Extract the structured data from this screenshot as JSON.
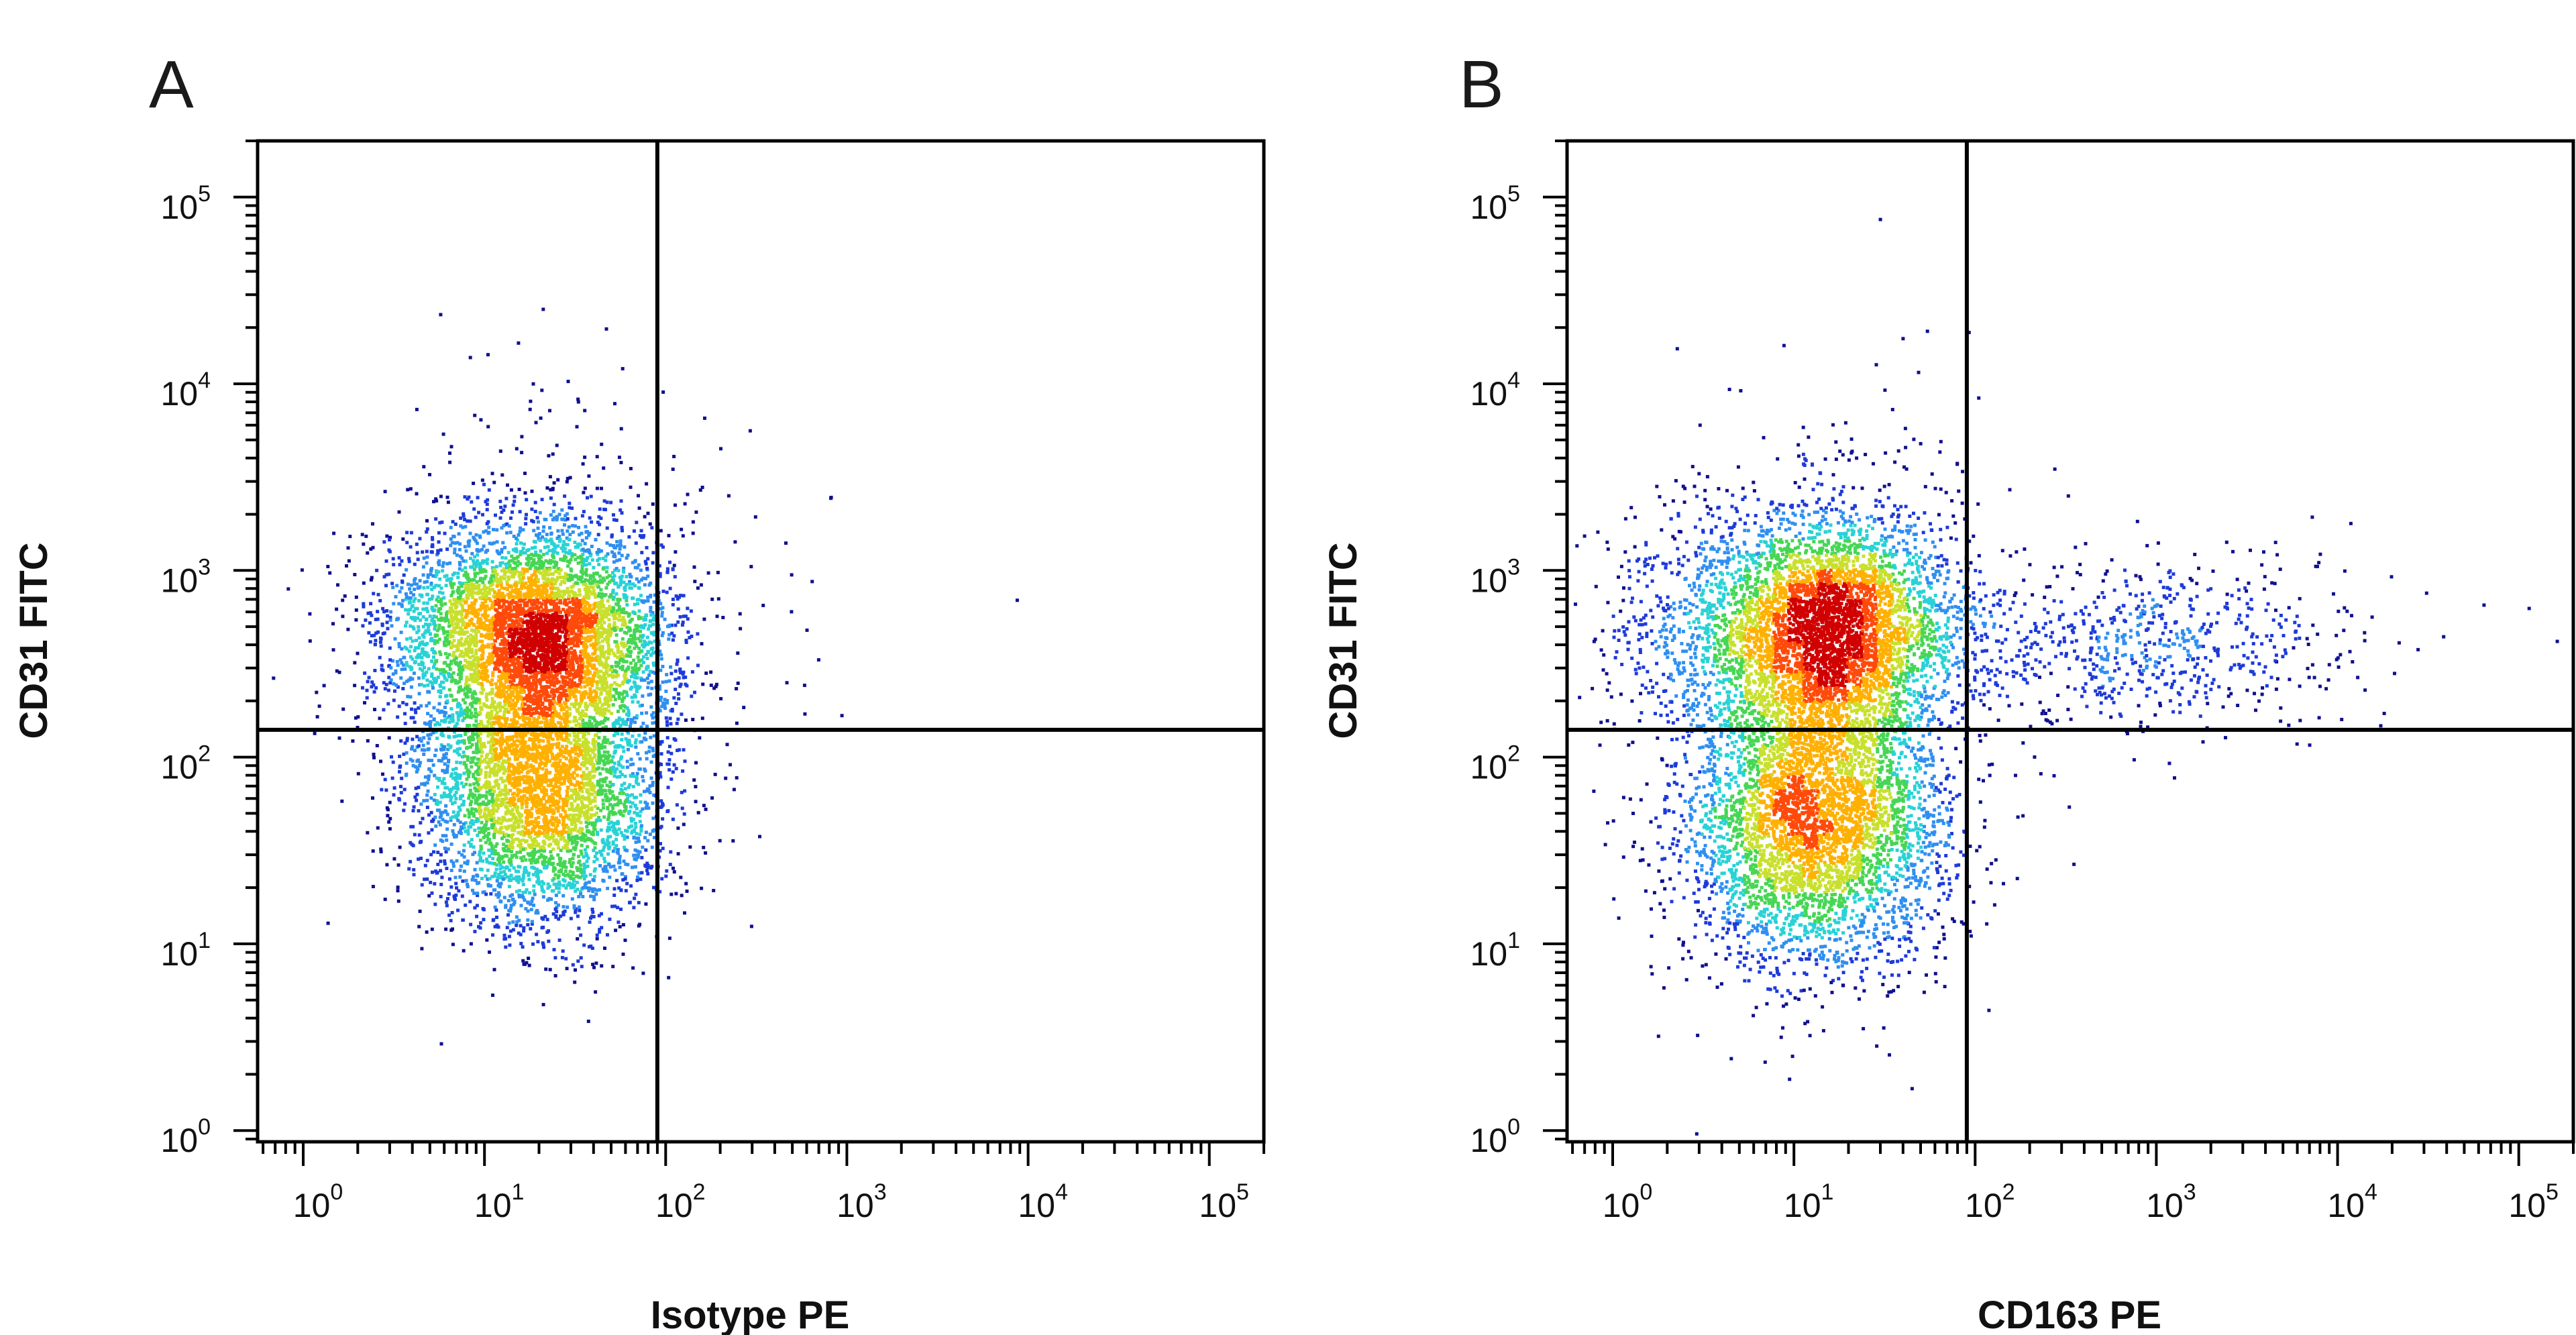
{
  "chart_data": [
    {
      "panel": "A",
      "type": "scatter",
      "style": "flow-cytometry pseudocolor density dot plot",
      "xlabel": "Isotype PE",
      "ylabel": "CD31 FITC",
      "xscale": "log",
      "yscale": "log",
      "xlim": [
        0.56,
        200000
      ],
      "ylim": [
        0.87,
        200000
      ],
      "x_ticks": [
        1,
        10,
        100,
        1000,
        10000,
        100000
      ],
      "x_tick_labels": [
        [
          "10",
          "0"
        ],
        [
          "10",
          "1"
        ],
        [
          "10",
          "2"
        ],
        [
          "10",
          "3"
        ],
        [
          "10",
          "4"
        ],
        [
          "10",
          "5"
        ]
      ],
      "y_ticks": [
        1,
        10,
        100,
        1000,
        10000,
        100000
      ],
      "y_tick_labels": [
        [
          "10",
          "0"
        ],
        [
          "10",
          "1"
        ],
        [
          "10",
          "2"
        ],
        [
          "10",
          "3"
        ],
        [
          "10",
          "4"
        ],
        [
          "10",
          "5"
        ]
      ],
      "gates": {
        "x": 90,
        "y": 140
      },
      "populations": [
        {
          "x_center": 22,
          "y_center": 450,
          "x_spread": 0.34,
          "y_spread": 0.3,
          "count": 4200
        },
        {
          "x_center": 20,
          "y_center": 65,
          "x_spread": 0.34,
          "y_spread": 0.36,
          "count": 4000
        },
        {
          "x_center": 6,
          "y_center": 500,
          "x_spread": 0.28,
          "y_spread": 0.3,
          "count": 700
        },
        {
          "x_center": 25,
          "y_center": 2500,
          "x_spread": 0.5,
          "y_spread": 0.45,
          "count": 120
        },
        {
          "x_center": 800,
          "y_center": 700,
          "x_spread": 0.45,
          "y_spread": 0.45,
          "count": 14
        }
      ],
      "grid": false
    },
    {
      "panel": "B",
      "type": "scatter",
      "style": "flow-cytometry pseudocolor density dot plot",
      "xlabel": "CD163 PE",
      "ylabel": "CD31 FITC",
      "xscale": "log",
      "yscale": "log",
      "xlim": [
        0.56,
        200000
      ],
      "ylim": [
        0.87,
        200000
      ],
      "x_ticks": [
        1,
        10,
        100,
        1000,
        10000,
        100000
      ],
      "x_tick_labels": [
        [
          "10",
          "0"
        ],
        [
          "10",
          "1"
        ],
        [
          "10",
          "2"
        ],
        [
          "10",
          "3"
        ],
        [
          "10",
          "4"
        ],
        [
          "10",
          "5"
        ]
      ],
      "y_ticks": [
        1,
        10,
        100,
        1000,
        10000,
        100000
      ],
      "y_tick_labels": [
        [
          "10",
          "0"
        ],
        [
          "10",
          "1"
        ],
        [
          "10",
          "2"
        ],
        [
          "10",
          "3"
        ],
        [
          "10",
          "4"
        ],
        [
          "10",
          "5"
        ]
      ],
      "gates": {
        "x": 90,
        "y": 140
      },
      "populations": [
        {
          "x_center": 16,
          "y_center": 480,
          "x_spread": 0.34,
          "y_spread": 0.3,
          "count": 4200
        },
        {
          "x_center": 13,
          "y_center": 48,
          "x_spread": 0.36,
          "y_spread": 0.4,
          "count": 4400
        },
        {
          "x_center": 3,
          "y_center": 550,
          "x_spread": 0.3,
          "y_spread": 0.3,
          "count": 500
        },
        {
          "x_center": 20,
          "y_center": 2500,
          "x_spread": 0.5,
          "y_spread": 0.45,
          "count": 140
        },
        {
          "x_center": 700,
          "y_center": 400,
          "x_spread": 0.55,
          "y_spread": 0.22,
          "count": 650
        },
        {
          "x_center": 3000,
          "y_center": 500,
          "x_spread": 0.55,
          "y_spread": 0.3,
          "count": 60
        }
      ],
      "grid": false
    }
  ],
  "density_colors": [
    "#10108f",
    "#1e3ad8",
    "#2f8ff0",
    "#28d2d6",
    "#46d654",
    "#c8e02c",
    "#ffb000",
    "#ff4a0a",
    "#d00000"
  ]
}
